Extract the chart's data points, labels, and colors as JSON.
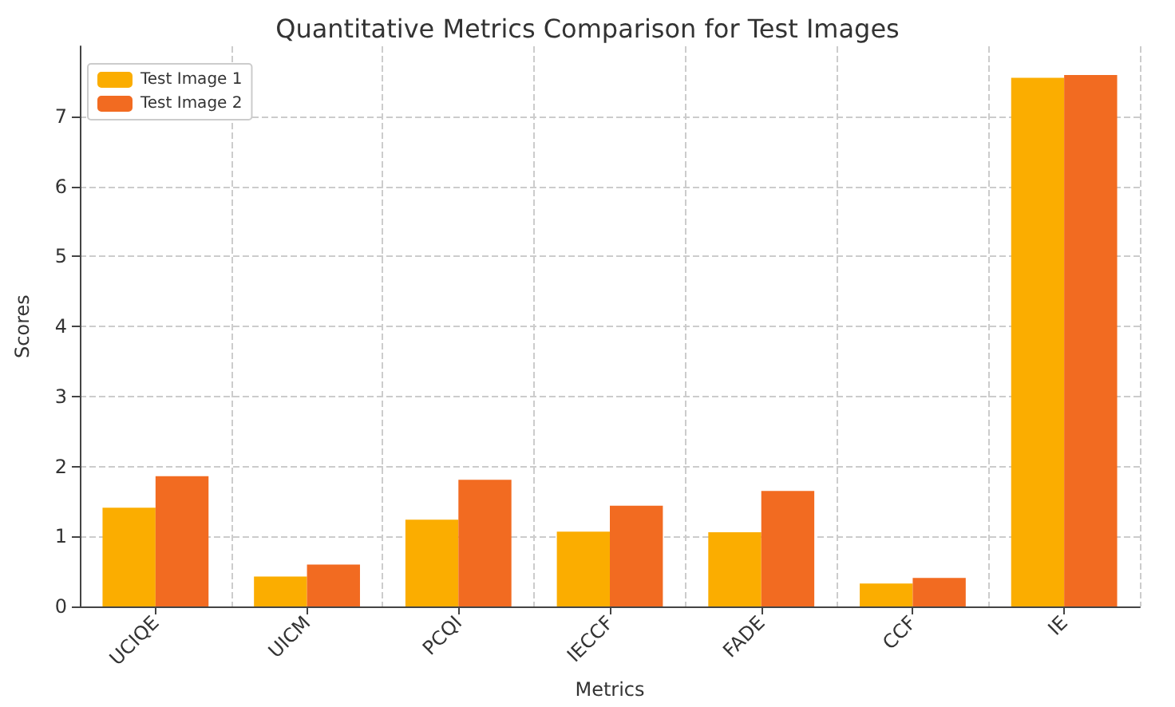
{
  "chart_data": {
    "type": "bar",
    "title": "Quantitative Metrics Comparison for Test Images",
    "xlabel": "Metrics",
    "ylabel": "Scores",
    "categories": [
      "UCIQE",
      "UICM",
      "PCQI",
      "IECCF",
      "FADE",
      "CCF",
      "IE"
    ],
    "series": [
      {
        "name": "Test Image 1",
        "color": "#fbad00",
        "values": [
          1.41,
          0.43,
          1.24,
          1.07,
          1.06,
          0.33,
          7.55
        ]
      },
      {
        "name": "Test Image 2",
        "color": "#f26b21",
        "values": [
          1.86,
          0.6,
          1.81,
          1.44,
          1.65,
          0.41,
          7.59
        ]
      }
    ],
    "ylim": [
      0,
      8
    ],
    "yticks": [
      0,
      1,
      2,
      3,
      4,
      5,
      6,
      7
    ],
    "grid": true,
    "legend": "top left"
  }
}
